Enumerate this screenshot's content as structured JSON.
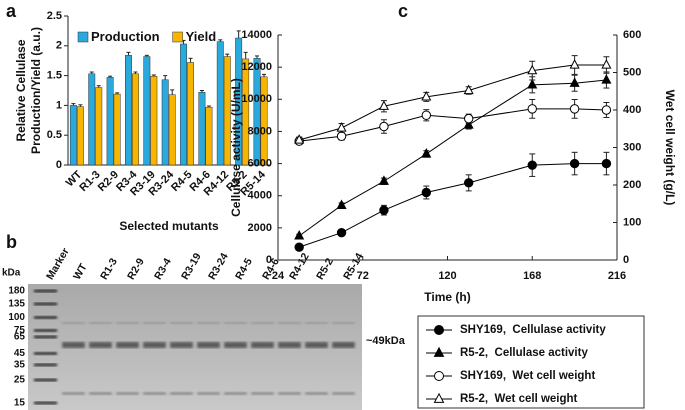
{
  "chart_data": [
    {
      "type": "bar",
      "panel": "a",
      "ylabel": [
        "Relative Cellulase",
        "Production/Yield (a.u.)"
      ],
      "xlabel": "Selected mutants",
      "categories": [
        "WT",
        "R1-3",
        "R2-9",
        "R3-4",
        "R3-19",
        "R3-24",
        "R4-5",
        "R4-6",
        "R4-12",
        "R5-2",
        "R5-14"
      ],
      "series": [
        {
          "name": "Production",
          "color": "#29a9dc",
          "values": [
            1.0,
            1.53,
            1.47,
            1.84,
            1.82,
            1.43,
            2.03,
            1.22,
            2.07,
            2.13,
            1.79
          ],
          "errors": [
            0.03,
            0.03,
            0.02,
            0.05,
            0.02,
            0.07,
            0.06,
            0.03,
            0.03,
            0.12,
            0.04
          ]
        },
        {
          "name": "Yield",
          "color": "#f7b500",
          "values": [
            0.98,
            1.3,
            1.19,
            1.53,
            1.49,
            1.18,
            1.72,
            0.97,
            1.82,
            1.78,
            1.48
          ],
          "errors": [
            0.03,
            0.03,
            0.02,
            0.03,
            0.02,
            0.08,
            0.07,
            0.02,
            0.04,
            0.11,
            0.04
          ]
        }
      ],
      "ylim": [
        0,
        2.5
      ],
      "yticks": [
        0,
        0.5,
        1,
        1.5,
        2,
        2.5
      ],
      "legend": "top"
    },
    {
      "type": "gel",
      "panel": "b",
      "unit": "kDa",
      "lanes": [
        "Marker",
        "WT",
        "R1-3",
        "R2-9",
        "R3-4",
        "R3-19",
        "R3-24",
        "R4-5",
        "R4-6",
        "R4-12",
        "R5-2",
        "R5-14"
      ],
      "ladder": [
        180,
        135,
        100,
        75,
        65,
        45,
        35,
        25,
        15
      ],
      "band_label": "~49kDa"
    },
    {
      "type": "line",
      "panel": "c",
      "xlabel": "Time (h)",
      "ylabel": "Cellulase activity (U/mL)",
      "y2label": "Wet cell weight (g/L)",
      "x": [
        36,
        60,
        84,
        108,
        132,
        168,
        192,
        210
      ],
      "series": [
        {
          "name": "SHY169,  Cellulase activity",
          "color": "#000000",
          "marker": "circle",
          "filled": true,
          "values": [
            800,
            1700,
            3100,
            4200,
            4800,
            5900,
            6000,
            6000
          ],
          "errors": [
            100,
            150,
            300,
            400,
            500,
            700,
            700,
            700
          ]
        },
        {
          "name": "R5-2,  Cellulase activity",
          "color": "#000000",
          "marker": "triangle",
          "filled": true,
          "values": [
            1500,
            3400,
            4900,
            6600,
            8400,
            10900,
            11000,
            11200
          ],
          "errors": [
            100,
            150,
            200,
            200,
            250,
            500,
            500,
            500
          ]
        },
        {
          "name": "SHY169,  Wet cell weight",
          "color": "#000000",
          "marker": "circle",
          "filled": false,
          "axis": "y2",
          "values": [
            317,
            330,
            356,
            386,
            377,
            403,
            403,
            400
          ],
          "errors": [
            8,
            10,
            18,
            15,
            12,
            25,
            25,
            20
          ]
        },
        {
          "name": "R5-2,  Wet cell weight",
          "color": "#000000",
          "marker": "triangle",
          "filled": false,
          "axis": "y2",
          "values": [
            320,
            352,
            410,
            435,
            452,
            505,
            520,
            520
          ],
          "errors": [
            8,
            12,
            15,
            12,
            10,
            25,
            25,
            22
          ]
        }
      ],
      "xlim": [
        24,
        216
      ],
      "xticks": [
        24,
        72,
        120,
        168,
        216
      ],
      "ylim": [
        0,
        14000
      ],
      "yticks": [
        0,
        2000,
        4000,
        6000,
        8000,
        10000,
        12000,
        14000
      ],
      "y2lim": [
        0,
        600
      ],
      "y2ticks": [
        0,
        100,
        200,
        300,
        400,
        500,
        600
      ],
      "legend": "below"
    }
  ]
}
